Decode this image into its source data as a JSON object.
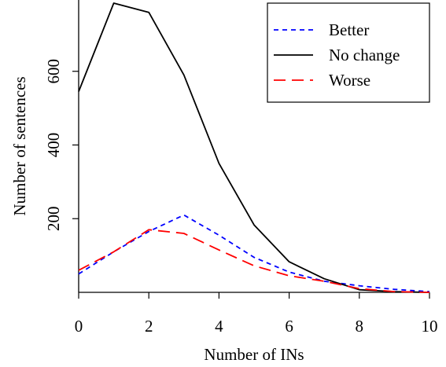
{
  "chart_data": {
    "type": "line",
    "title": "",
    "xlabel": "Number of INs",
    "ylabel": "Number of sentences",
    "xlim": [
      0,
      10
    ],
    "ylim": [
      0,
      785
    ],
    "x_ticks": [
      0,
      2,
      4,
      6,
      8,
      10
    ],
    "y_ticks": [
      200,
      400,
      600
    ],
    "grid": false,
    "legend_position": "top-right",
    "x": [
      0,
      1,
      2,
      3,
      4,
      5,
      6,
      7,
      8,
      9,
      10
    ],
    "series": [
      {
        "name": "Better",
        "color": "#0000ff",
        "style": "short-dash",
        "values": [
          50,
          110,
          165,
          210,
          155,
          95,
          55,
          30,
          18,
          8,
          2
        ]
      },
      {
        "name": "No change",
        "color": "#000000",
        "style": "solid",
        "values": [
          545,
          785,
          760,
          590,
          350,
          183,
          83,
          37,
          7,
          2,
          0
        ]
      },
      {
        "name": "Worse",
        "color": "#ff0000",
        "style": "long-dash",
        "values": [
          60,
          110,
          170,
          160,
          115,
          72,
          45,
          30,
          10,
          2,
          0
        ]
      }
    ]
  }
}
